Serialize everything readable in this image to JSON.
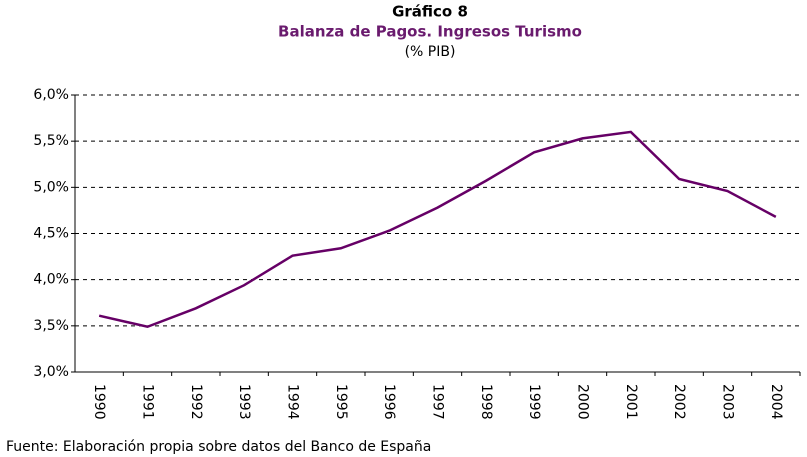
{
  "chart_data": {
    "type": "line",
    "title": "Gráfico 8",
    "subtitle": "Balanza de Pagos. Ingresos Turismo",
    "unit_label": "(% PIB)",
    "source": "Fuente: Elaboración propia sobre datos del Banco de España",
    "categories": [
      "1990",
      "1991",
      "1992",
      "1993",
      "1994",
      "1995",
      "1996",
      "1997",
      "1998",
      "1999",
      "2000",
      "2001",
      "2002",
      "2003",
      "2004"
    ],
    "values": [
      3.61,
      3.49,
      3.69,
      3.94,
      4.26,
      4.34,
      4.53,
      4.78,
      5.07,
      5.38,
      5.53,
      5.6,
      5.09,
      4.96,
      4.68
    ],
    "color": "#660066",
    "ylim": [
      3,
      6
    ],
    "yticks": [
      {
        "value": 3,
        "label": "3,0%"
      },
      {
        "value": 3.5,
        "label": "3,5%"
      },
      {
        "value": 4,
        "label": "4,0%"
      },
      {
        "value": 4.5,
        "label": "4,5%"
      },
      {
        "value": 5,
        "label": "5,0%"
      },
      {
        "value": 5.5,
        "label": "5,5%"
      },
      {
        "value": 6,
        "label": "6,0%"
      }
    ],
    "grid": true
  }
}
